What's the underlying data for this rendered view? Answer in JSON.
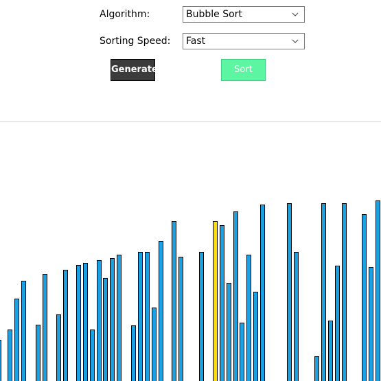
{
  "controls": {
    "algorithm_label": "Algorithm:",
    "algorithm_value": "Bubble Sort",
    "speed_label": "Sorting Speed:",
    "speed_value": "Fast",
    "generate_label": "Generate",
    "sort_label": "Sort"
  },
  "colors": {
    "bar_default": "#1ba1e2",
    "bar_active": "#ffdd00",
    "generate_bg": "#3b3b3b",
    "sort_bg": "#5cf5a2"
  },
  "bars": [
    {
      "value": 60,
      "state": "default"
    },
    {
      "value": 75,
      "state": "default"
    },
    {
      "value": 120,
      "state": "default"
    },
    {
      "value": 146,
      "state": "default"
    },
    {
      "value": 82,
      "state": "default"
    },
    {
      "value": 156,
      "state": "default"
    },
    {
      "value": 97,
      "state": "default"
    },
    {
      "value": 162,
      "state": "default"
    },
    {
      "value": 169,
      "state": "default"
    },
    {
      "value": 172,
      "state": "default"
    },
    {
      "value": 75,
      "state": "default"
    },
    {
      "value": 176,
      "state": "default"
    },
    {
      "value": 150,
      "state": "default"
    },
    {
      "value": 179,
      "state": "default"
    },
    {
      "value": 184,
      "state": "default"
    },
    {
      "value": 81,
      "state": "default"
    },
    {
      "value": 188,
      "state": "default"
    },
    {
      "value": 188,
      "state": "default"
    },
    {
      "value": 107,
      "state": "default"
    },
    {
      "value": 204,
      "state": "default"
    },
    {
      "value": 233,
      "state": "default"
    },
    {
      "value": 181,
      "state": "default"
    },
    {
      "value": 188,
      "state": "default"
    },
    {
      "value": 233,
      "state": "active"
    },
    {
      "value": 227,
      "state": "default"
    },
    {
      "value": 143,
      "state": "default"
    },
    {
      "value": 247,
      "state": "default"
    },
    {
      "value": 85,
      "state": "default"
    },
    {
      "value": 184,
      "state": "default"
    },
    {
      "value": 130,
      "state": "default"
    },
    {
      "value": 257,
      "state": "default"
    },
    {
      "value": 259,
      "state": "default"
    },
    {
      "value": 188,
      "state": "default"
    },
    {
      "value": 36,
      "state": "default"
    },
    {
      "value": 259,
      "state": "default"
    },
    {
      "value": 88,
      "state": "default"
    },
    {
      "value": 168,
      "state": "default"
    },
    {
      "value": 259,
      "state": "default"
    },
    {
      "value": 243,
      "state": "default"
    },
    {
      "value": 166,
      "state": "default"
    },
    {
      "value": 263,
      "state": "default"
    }
  ]
}
